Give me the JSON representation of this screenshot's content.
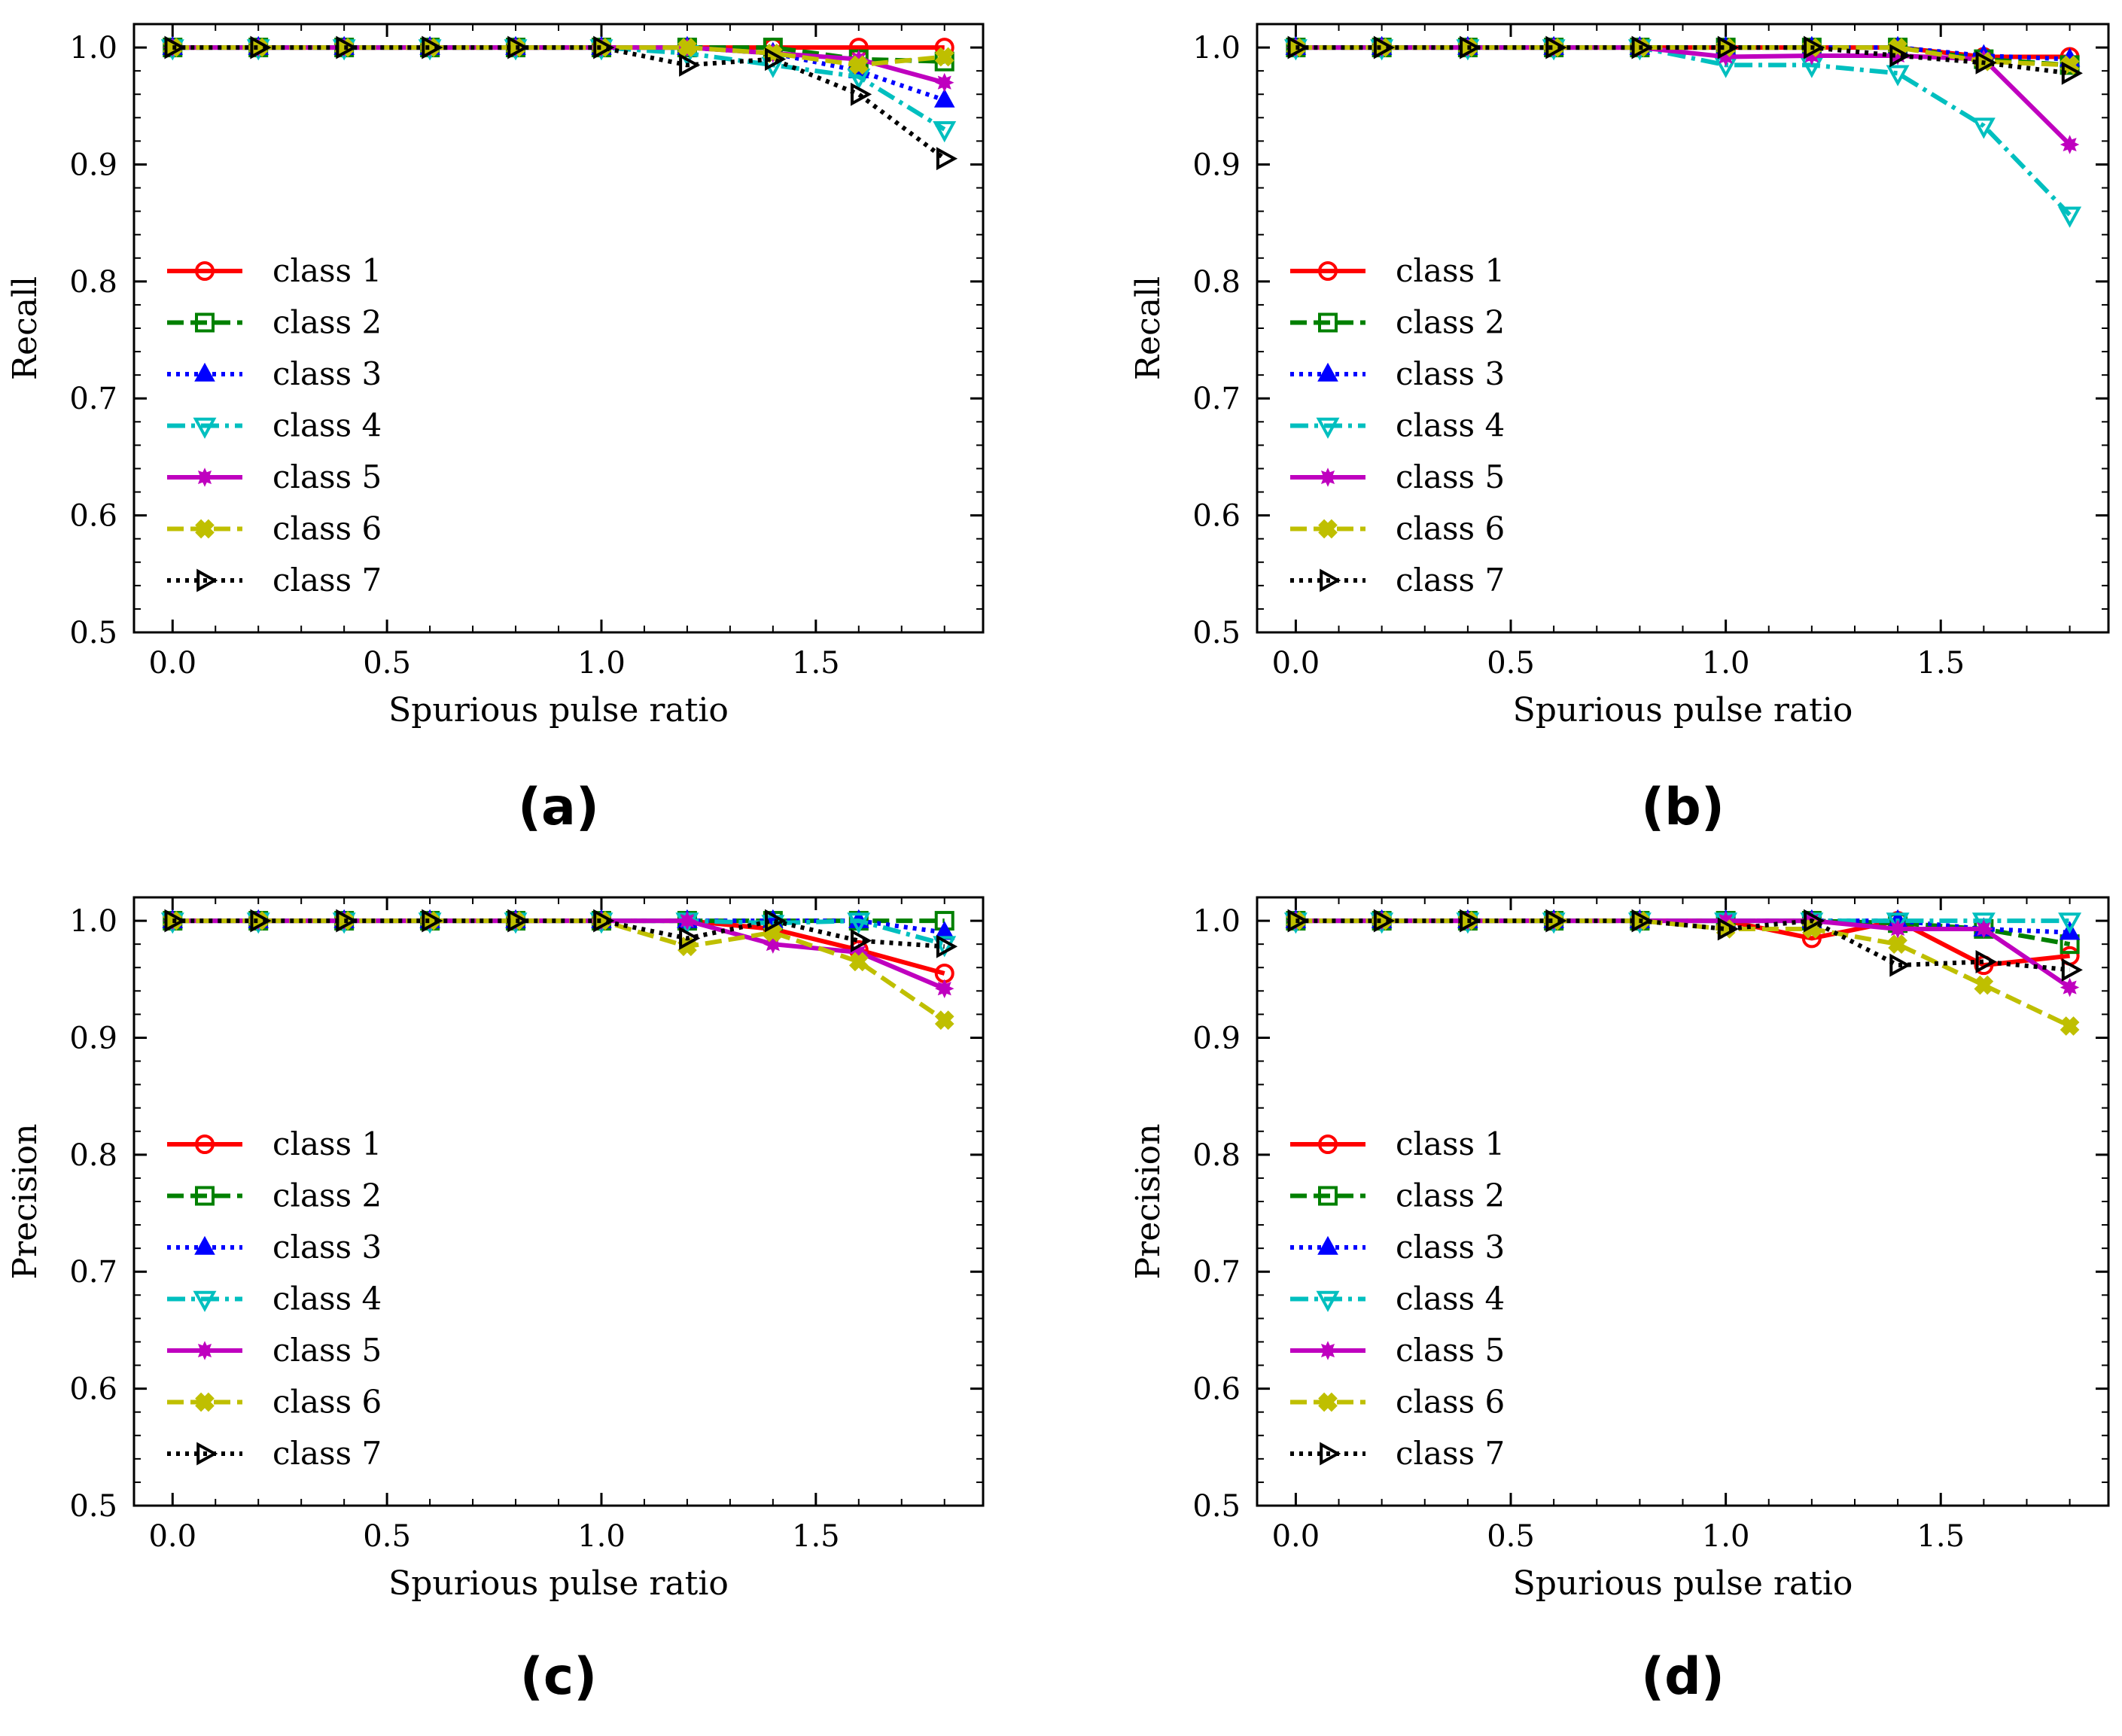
{
  "chart_data": [
    {
      "type": "line",
      "panel_label": "(a)",
      "xlabel": "Spurious pulse ratio",
      "ylabel": "Recall",
      "xlim": [
        -0.09,
        1.89
      ],
      "ylim": [
        0.5,
        1.02
      ],
      "xticks": [
        0.0,
        0.5,
        1.0,
        1.5
      ],
      "xtick_labels": [
        "0.0",
        "0.5",
        "1.0",
        "1.5"
      ],
      "yticks": [
        0.5,
        0.6,
        0.7,
        0.8,
        0.9,
        1.0
      ],
      "ytick_labels": [
        "0.5",
        "0.6",
        "0.7",
        "0.8",
        "0.9",
        "1.0"
      ],
      "legend_position": "center-left",
      "x": [
        0.0,
        0.2,
        0.4,
        0.6,
        0.8,
        1.0,
        1.2,
        1.4,
        1.6,
        1.8
      ],
      "series": [
        {
          "name": "class 1",
          "color": "#ff0000",
          "dash": "solid",
          "marker": "circle",
          "values": [
            1,
            1,
            1,
            1,
            1,
            1,
            1,
            1,
            1,
            1
          ]
        },
        {
          "name": "class 2",
          "color": "#008000",
          "dash": "dashed",
          "marker": "square",
          "values": [
            1,
            1,
            1,
            1,
            1,
            1,
            1,
            1,
            0.99,
            0.988
          ]
        },
        {
          "name": "class 3",
          "color": "#0000ff",
          "dash": "dotted",
          "marker": "triangle-up",
          "values": [
            1,
            1,
            1,
            1,
            1,
            1,
            1,
            0.995,
            0.98,
            0.955
          ]
        },
        {
          "name": "class 4",
          "color": "#00bfbf",
          "dash": "dashdot",
          "marker": "triangle-down",
          "values": [
            1,
            1,
            1,
            1,
            1,
            1,
            0.995,
            0.985,
            0.975,
            0.93
          ]
        },
        {
          "name": "class 5",
          "color": "#bf00bf",
          "dash": "solid",
          "marker": "star",
          "values": [
            1,
            1,
            1,
            1,
            1,
            1,
            1,
            0.995,
            0.99,
            0.97
          ]
        },
        {
          "name": "class 6",
          "color": "#bfbf00",
          "dash": "dashed",
          "marker": "plus",
          "values": [
            1,
            1,
            1,
            1,
            1,
            1,
            1,
            0.995,
            0.985,
            0.992
          ]
        },
        {
          "name": "class 7",
          "color": "#000000",
          "dash": "dotted",
          "marker": "triangle-right",
          "values": [
            1,
            1,
            1,
            1,
            1,
            1,
            0.985,
            0.99,
            0.96,
            0.905
          ]
        }
      ]
    },
    {
      "type": "line",
      "panel_label": "(b)",
      "xlabel": "Spurious pulse ratio",
      "ylabel": "Recall",
      "xlim": [
        -0.09,
        1.89
      ],
      "ylim": [
        0.5,
        1.02
      ],
      "xticks": [
        0.0,
        0.5,
        1.0,
        1.5
      ],
      "xtick_labels": [
        "0.0",
        "0.5",
        "1.0",
        "1.5"
      ],
      "yticks": [
        0.5,
        0.6,
        0.7,
        0.8,
        0.9,
        1.0
      ],
      "ytick_labels": [
        "0.5",
        "0.6",
        "0.7",
        "0.8",
        "0.9",
        "1.0"
      ],
      "legend_position": "center-left",
      "x": [
        0.0,
        0.2,
        0.4,
        0.6,
        0.8,
        1.0,
        1.2,
        1.4,
        1.6,
        1.8
      ],
      "series": [
        {
          "name": "class 1",
          "color": "#ff0000",
          "dash": "solid",
          "marker": "circle",
          "values": [
            1,
            1,
            1,
            1,
            1,
            1,
            1,
            1,
            0.992,
            0.992
          ]
        },
        {
          "name": "class 2",
          "color": "#008000",
          "dash": "dashed",
          "marker": "square",
          "values": [
            1,
            1,
            1,
            1,
            1,
            1,
            1,
            1,
            0.99,
            0.985
          ]
        },
        {
          "name": "class 3",
          "color": "#0000ff",
          "dash": "dotted",
          "marker": "triangle-up",
          "values": [
            1,
            1,
            1,
            1,
            1,
            1,
            1,
            1,
            0.993,
            0.99
          ]
        },
        {
          "name": "class 4",
          "color": "#00bfbf",
          "dash": "dashdot",
          "marker": "triangle-down",
          "values": [
            1,
            1,
            1,
            1,
            1,
            0.985,
            0.985,
            0.978,
            0.933,
            0.857
          ]
        },
        {
          "name": "class 5",
          "color": "#bf00bf",
          "dash": "solid",
          "marker": "star",
          "values": [
            1,
            1,
            1,
            1,
            1,
            0.992,
            0.993,
            0.993,
            0.99,
            0.917
          ]
        },
        {
          "name": "class 6",
          "color": "#bfbf00",
          "dash": "dashed",
          "marker": "plus",
          "values": [
            1,
            1,
            1,
            1,
            1,
            1,
            1,
            1,
            0.988,
            0.985
          ]
        },
        {
          "name": "class 7",
          "color": "#000000",
          "dash": "dotted",
          "marker": "triangle-right",
          "values": [
            1,
            1,
            1,
            1,
            1,
            1,
            1,
            0.993,
            0.987,
            0.978
          ]
        }
      ]
    },
    {
      "type": "line",
      "panel_label": "(c)",
      "xlabel": "Spurious pulse ratio",
      "ylabel": "Precision",
      "xlim": [
        -0.09,
        1.89
      ],
      "ylim": [
        0.5,
        1.02
      ],
      "xticks": [
        0.0,
        0.5,
        1.0,
        1.5
      ],
      "xtick_labels": [
        "0.0",
        "0.5",
        "1.0",
        "1.5"
      ],
      "yticks": [
        0.5,
        0.6,
        0.7,
        0.8,
        0.9,
        1.0
      ],
      "ytick_labels": [
        "0.5",
        "0.6",
        "0.7",
        "0.8",
        "0.9",
        "1.0"
      ],
      "legend_position": "center-left",
      "x": [
        0.0,
        0.2,
        0.4,
        0.6,
        0.8,
        1.0,
        1.2,
        1.4,
        1.6,
        1.8
      ],
      "series": [
        {
          "name": "class 1",
          "color": "#ff0000",
          "dash": "solid",
          "marker": "circle",
          "values": [
            1,
            1,
            1,
            1,
            1,
            1,
            1,
            0.993,
            0.975,
            0.955
          ]
        },
        {
          "name": "class 2",
          "color": "#008000",
          "dash": "dashed",
          "marker": "square",
          "values": [
            1,
            1,
            1,
            1,
            1,
            1,
            1,
            1,
            1,
            1
          ]
        },
        {
          "name": "class 3",
          "color": "#0000ff",
          "dash": "dotted",
          "marker": "triangle-up",
          "values": [
            1,
            1,
            1,
            1,
            1,
            1,
            1,
            1,
            1,
            0.99
          ]
        },
        {
          "name": "class 4",
          "color": "#00bfbf",
          "dash": "dashdot",
          "marker": "triangle-down",
          "values": [
            1,
            1,
            1,
            1,
            1,
            1,
            1,
            0.998,
            1,
            0.98
          ]
        },
        {
          "name": "class 5",
          "color": "#bf00bf",
          "dash": "solid",
          "marker": "star",
          "values": [
            1,
            1,
            1,
            1,
            1,
            1,
            1,
            0.98,
            0.973,
            0.942
          ]
        },
        {
          "name": "class 6",
          "color": "#bfbf00",
          "dash": "dashed",
          "marker": "plus",
          "values": [
            1,
            1,
            1,
            1,
            1,
            1,
            0.978,
            0.99,
            0.965,
            0.915
          ]
        },
        {
          "name": "class 7",
          "color": "#000000",
          "dash": "dotted",
          "marker": "triangle-right",
          "values": [
            1,
            1,
            1,
            1,
            1,
            1,
            0.985,
            1,
            0.983,
            0.978
          ]
        }
      ]
    },
    {
      "type": "line",
      "panel_label": "(d)",
      "xlabel": "Spurious pulse ratio",
      "ylabel": "Precision",
      "xlim": [
        -0.09,
        1.89
      ],
      "ylim": [
        0.5,
        1.02
      ],
      "xticks": [
        0.0,
        0.5,
        1.0,
        1.5
      ],
      "xtick_labels": [
        "0.0",
        "0.5",
        "1.0",
        "1.5"
      ],
      "yticks": [
        0.5,
        0.6,
        0.7,
        0.8,
        0.9,
        1.0
      ],
      "ytick_labels": [
        "0.5",
        "0.6",
        "0.7",
        "0.8",
        "0.9",
        "1.0"
      ],
      "legend_position": "center-left",
      "x": [
        0.0,
        0.2,
        0.4,
        0.6,
        0.8,
        1.0,
        1.2,
        1.4,
        1.6,
        1.8
      ],
      "series": [
        {
          "name": "class 1",
          "color": "#ff0000",
          "dash": "solid",
          "marker": "circle",
          "values": [
            1,
            1,
            1,
            1,
            1,
            1,
            0.985,
            1,
            0.962,
            0.97
          ]
        },
        {
          "name": "class 2",
          "color": "#008000",
          "dash": "dashed",
          "marker": "square",
          "values": [
            1,
            1,
            1,
            1,
            1,
            1,
            1,
            0.998,
            0.993,
            0.98
          ]
        },
        {
          "name": "class 3",
          "color": "#0000ff",
          "dash": "dotted",
          "marker": "triangle-up",
          "values": [
            1,
            1,
            1,
            1,
            1,
            1,
            1,
            1,
            0.993,
            0.99
          ]
        },
        {
          "name": "class 4",
          "color": "#00bfbf",
          "dash": "dashdot",
          "marker": "triangle-down",
          "values": [
            1,
            1,
            1,
            1,
            1,
            1,
            1,
            1,
            1,
            1
          ]
        },
        {
          "name": "class 5",
          "color": "#bf00bf",
          "dash": "solid",
          "marker": "star",
          "values": [
            1,
            1,
            1,
            1,
            1,
            1,
            1,
            0.993,
            0.993,
            0.943
          ]
        },
        {
          "name": "class 6",
          "color": "#bfbf00",
          "dash": "dashed",
          "marker": "plus",
          "values": [
            1,
            1,
            1,
            1,
            1,
            0.993,
            0.993,
            0.98,
            0.945,
            0.91
          ]
        },
        {
          "name": "class 7",
          "color": "#000000",
          "dash": "dotted",
          "marker": "triangle-right",
          "values": [
            1,
            1,
            1,
            1,
            1,
            0.993,
            1,
            0.962,
            0.965,
            0.958
          ]
        }
      ]
    }
  ]
}
